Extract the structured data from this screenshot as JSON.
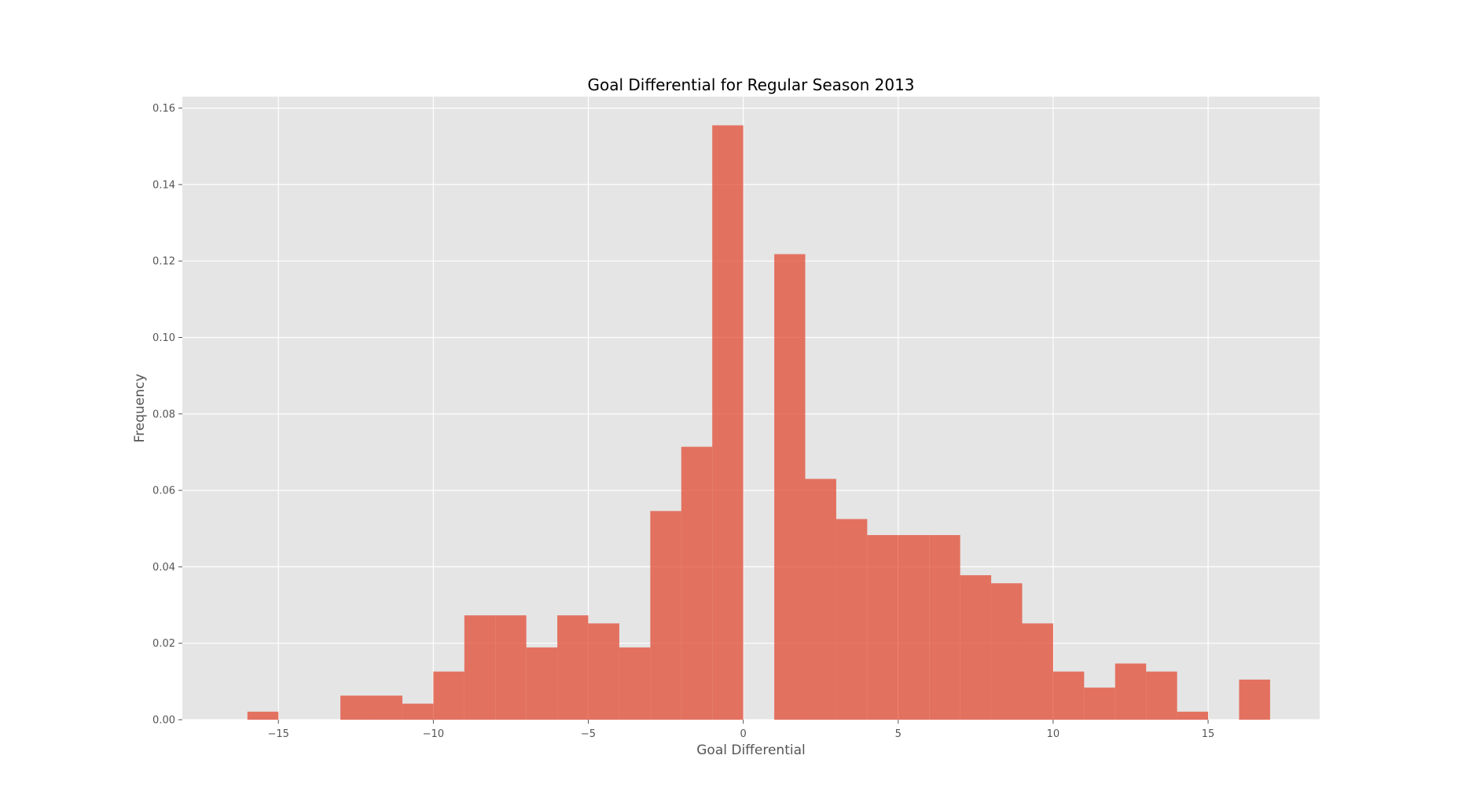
{
  "chart_data": {
    "type": "bar",
    "title": "Goal Differential for Regular Season 2013",
    "xlabel": "Goal Differential",
    "ylabel": "Frequency",
    "xlim": [
      -18.1,
      18.6
    ],
    "ylim": [
      0,
      0.163
    ],
    "grid": true,
    "xticks": [
      -15,
      -10,
      -5,
      0,
      5,
      10,
      15
    ],
    "xtick_labels": [
      "−15",
      "−10",
      "−5",
      "0",
      "5",
      "10",
      "15"
    ],
    "yticks": [
      0.0,
      0.02,
      0.04,
      0.06,
      0.08,
      0.1,
      0.12,
      0.14,
      0.16
    ],
    "ytick_labels": [
      "0.00",
      "0.02",
      "0.04",
      "0.06",
      "0.08",
      "0.10",
      "0.12",
      "0.14",
      "0.16"
    ],
    "bin_edges": [
      -16,
      -15,
      -14,
      -13,
      -12,
      -11,
      -10,
      -9,
      -8,
      -7,
      -6,
      -5,
      -4,
      -3,
      -2,
      -1,
      0,
      1,
      2,
      3,
      4,
      5,
      6,
      7,
      8,
      9,
      10,
      11,
      12,
      13,
      14,
      15,
      16,
      17
    ],
    "values": [
      0.0021,
      0,
      0,
      0.0063,
      0.0063,
      0.0042,
      0.0126,
      0.0273,
      0.0273,
      0.0189,
      0.0273,
      0.0252,
      0.0189,
      0.0546,
      0.0714,
      0.1555,
      0,
      0.1218,
      0.063,
      0.0525,
      0.0483,
      0.0483,
      0.0483,
      0.0378,
      0.0357,
      0.0252,
      0.0126,
      0.0084,
      0.0147,
      0.0126,
      0.0021,
      0,
      0.0105
    ],
    "colors": {
      "bar": "#E24A33",
      "bar_opacity": 0.75,
      "plot_bg": "#E5E5E5",
      "grid": "#FFFFFF"
    }
  }
}
